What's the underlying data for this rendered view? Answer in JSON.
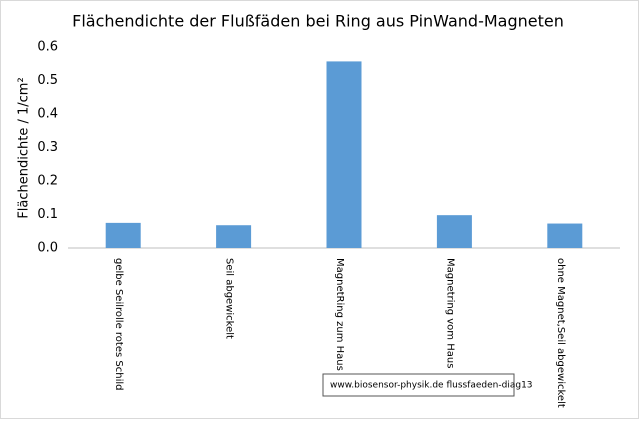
{
  "chart_data": {
    "type": "bar",
    "title": "Flächendichte der Flußfäden bei Ring aus PinWand-Magneten",
    "y_label": "Flächendichte / 1/cm²",
    "categories": [
      "gelbe Seilrolle rotes Schild",
      "Seil abgewickelt",
      "MagnetRing zum Haus",
      "Magnetring vom Haus",
      "ohne Magnet,Seil abgewickelt"
    ],
    "values": [
      0.075,
      0.068,
      0.557,
      0.098,
      0.073
    ],
    "color": "#5b9bd5",
    "ylim": [
      0,
      0.6
    ],
    "yticks": [
      {
        "value": 0,
        "label": "0.0"
      },
      0.1,
      0.2,
      0.3,
      0.4,
      0.5,
      0.6
    ],
    "grid": false,
    "annotation": "www.biosensor-physik.de  flussfaeden-diag13"
  }
}
